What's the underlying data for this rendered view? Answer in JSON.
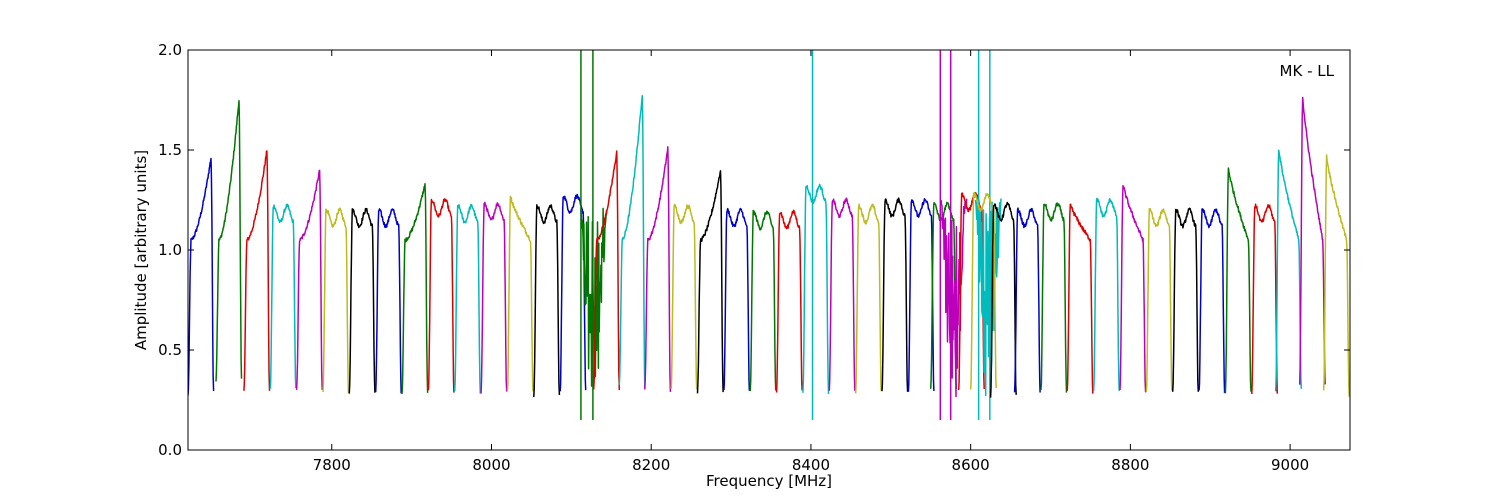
{
  "chart_data": {
    "type": "line",
    "title": "",
    "xlabel": "Frequency [MHz]",
    "ylabel": "Amplitude [arbitrary units]",
    "annotation": "MK - LL",
    "xlim": [
      7620,
      9075
    ],
    "ylim": [
      0.0,
      2.0
    ],
    "x_ticks": [
      7800,
      8000,
      8200,
      8400,
      8600,
      8800,
      9000
    ],
    "y_ticks": [
      "0.0",
      "0.5",
      "1.0",
      "1.5",
      "2.0"
    ],
    "grid": false,
    "legend": "none",
    "channel_width_mhz": 32,
    "series": [
      {
        "color": "#0000cc",
        "start": 7620,
        "low_left": 0.27,
        "low_right": 0.3,
        "max": 1.46,
        "shape": "rise"
      },
      {
        "color": "#007700",
        "start": 7655,
        "low_left": 0.35,
        "low_right": 0.35,
        "max": 1.75,
        "shape": "rise"
      },
      {
        "color": "#dd0000",
        "start": 7690,
        "low_left": 0.3,
        "low_right": 0.3,
        "max": 1.5,
        "shape": "rise"
      },
      {
        "color": "#00bbbb",
        "start": 7723,
        "low_left": 0.3,
        "low_right": 0.3,
        "max": 1.22,
        "shape": "flat"
      },
      {
        "color": "#bb00bb",
        "start": 7756,
        "low_left": 0.3,
        "low_right": 0.3,
        "max": 1.4,
        "shape": "rise"
      },
      {
        "color": "#bbbb22",
        "start": 7789,
        "low_left": 0.29,
        "low_right": 0.29,
        "max": 1.2,
        "shape": "flat"
      },
      {
        "color": "#000000",
        "start": 7822,
        "low_left": 0.29,
        "low_right": 0.29,
        "max": 1.2,
        "shape": "flat"
      },
      {
        "color": "#0000cc",
        "start": 7855,
        "low_left": 0.29,
        "low_right": 0.29,
        "max": 1.2,
        "shape": "flat"
      },
      {
        "color": "#007700",
        "start": 7888,
        "low_left": 0.29,
        "low_right": 0.29,
        "max": 1.33,
        "shape": "rise"
      },
      {
        "color": "#dd0000",
        "start": 7921,
        "low_left": 0.29,
        "low_right": 0.29,
        "max": 1.25,
        "shape": "flat"
      },
      {
        "color": "#00bbbb",
        "start": 7954,
        "low_left": 0.29,
        "low_right": 0.29,
        "max": 1.22,
        "shape": "flat"
      },
      {
        "color": "#bb00bb",
        "start": 7987,
        "low_left": 0.29,
        "low_right": 0.29,
        "max": 1.23,
        "shape": "flat"
      },
      {
        "color": "#bbbb22",
        "start": 8020,
        "low_left": 0.29,
        "low_right": 0.29,
        "max": 1.27,
        "shape": "fall"
      },
      {
        "color": "#000000",
        "start": 8053,
        "low_left": 0.27,
        "low_right": 0.27,
        "max": 1.22,
        "shape": "flat"
      },
      {
        "color": "#0000cc",
        "start": 8086,
        "low_left": 0.29,
        "low_right": 0.29,
        "max": 1.27,
        "shape": "flat"
      },
      {
        "color": "#007700",
        "start": 8112,
        "low_left": 0.6,
        "low_right": 0.3,
        "max": 1.2,
        "shape": "noisy",
        "spikes": [
          8112,
          8127
        ]
      },
      {
        "color": "#dd0000",
        "start": 8128,
        "low_left": 0.3,
        "low_right": 0.3,
        "max": 1.49,
        "shape": "rise"
      },
      {
        "color": "#00bbbb",
        "start": 8160,
        "low_left": 0.32,
        "low_right": 0.32,
        "max": 1.78,
        "shape": "rise"
      },
      {
        "color": "#bb00bb",
        "start": 8192,
        "low_left": 0.3,
        "low_right": 0.3,
        "max": 1.51,
        "shape": "rise"
      },
      {
        "color": "#bbbb22",
        "start": 8225,
        "low_left": 0.3,
        "low_right": 0.3,
        "max": 1.22,
        "shape": "flat"
      },
      {
        "color": "#000000",
        "start": 8258,
        "low_left": 0.29,
        "low_right": 0.29,
        "max": 1.4,
        "shape": "rise"
      },
      {
        "color": "#0000cc",
        "start": 8291,
        "low_left": 0.29,
        "low_right": 0.29,
        "max": 1.2,
        "shape": "flat"
      },
      {
        "color": "#007700",
        "start": 8324,
        "low_left": 0.29,
        "low_right": 0.29,
        "max": 1.19,
        "shape": "flat"
      },
      {
        "color": "#dd0000",
        "start": 8357,
        "low_left": 0.29,
        "low_right": 0.29,
        "max": 1.19,
        "shape": "flat"
      },
      {
        "color": "#00bbbb",
        "start": 8390,
        "low_left": 0.29,
        "low_right": 0.29,
        "max": 1.32,
        "shape": "flat",
        "spikes": [
          8402
        ]
      },
      {
        "color": "#bb00bb",
        "start": 8423,
        "low_left": 0.29,
        "low_right": 0.29,
        "max": 1.25,
        "shape": "flat"
      },
      {
        "color": "#bbbb22",
        "start": 8456,
        "low_left": 0.29,
        "low_right": 0.29,
        "max": 1.22,
        "shape": "flat"
      },
      {
        "color": "#000000",
        "start": 8489,
        "low_left": 0.29,
        "low_right": 0.29,
        "max": 1.25,
        "shape": "flat"
      },
      {
        "color": "#0000cc",
        "start": 8522,
        "low_left": 0.29,
        "low_right": 0.29,
        "max": 1.25,
        "shape": "flat"
      },
      {
        "color": "#007700",
        "start": 8550,
        "low_left": 0.3,
        "low_right": 0.3,
        "max": 1.23,
        "shape": "flat"
      },
      {
        "color": "#bb00bb",
        "start": 8563,
        "low_left": 0.5,
        "low_right": 0.5,
        "max": 1.25,
        "shape": "noisy",
        "spikes": [
          8562,
          8575
        ]
      },
      {
        "color": "#dd0000",
        "start": 8585,
        "low_left": 0.3,
        "low_right": 0.3,
        "max": 1.28,
        "shape": "flat"
      },
      {
        "color": "#00bbbb",
        "start": 8606,
        "low_left": 0.3,
        "low_right": 0.3,
        "max": 1.25,
        "shape": "noisy",
        "spikes": [
          8610,
          8624
        ]
      },
      {
        "color": "#bbbb22",
        "start": 8600,
        "low_left": 0.3,
        "low_right": 0.3,
        "max": 1.28,
        "shape": "flat"
      },
      {
        "color": "#000000",
        "start": 8625,
        "low_left": 0.27,
        "low_right": 0.27,
        "max": 1.23,
        "shape": "flat"
      },
      {
        "color": "#0000cc",
        "start": 8655,
        "low_left": 0.29,
        "low_right": 0.29,
        "max": 1.2,
        "shape": "flat"
      },
      {
        "color": "#007700",
        "start": 8688,
        "low_left": 0.29,
        "low_right": 0.29,
        "max": 1.23,
        "shape": "flat"
      },
      {
        "color": "#dd0000",
        "start": 8721,
        "low_left": 0.29,
        "low_right": 0.29,
        "max": 1.23,
        "shape": "fall"
      },
      {
        "color": "#00bbbb",
        "start": 8754,
        "low_left": 0.29,
        "low_right": 0.29,
        "max": 1.25,
        "shape": "flat"
      },
      {
        "color": "#bb00bb",
        "start": 8787,
        "low_left": 0.29,
        "low_right": 0.29,
        "max": 1.33,
        "shape": "fall"
      },
      {
        "color": "#bbbb22",
        "start": 8820,
        "low_left": 0.29,
        "low_right": 0.29,
        "max": 1.2,
        "shape": "flat"
      },
      {
        "color": "#000000",
        "start": 8853,
        "low_left": 0.29,
        "low_right": 0.29,
        "max": 1.2,
        "shape": "flat"
      },
      {
        "color": "#0000cc",
        "start": 8886,
        "low_left": 0.29,
        "low_right": 0.29,
        "max": 1.2,
        "shape": "flat"
      },
      {
        "color": "#007700",
        "start": 8919,
        "low_left": 0.29,
        "low_right": 0.29,
        "max": 1.41,
        "shape": "fall"
      },
      {
        "color": "#dd0000",
        "start": 8952,
        "low_left": 0.29,
        "low_right": 0.29,
        "max": 1.22,
        "shape": "flat"
      },
      {
        "color": "#00bbbb",
        "start": 8982,
        "low_left": 0.3,
        "low_right": 0.3,
        "max": 1.51,
        "shape": "fall"
      },
      {
        "color": "#bb00bb",
        "start": 9012,
        "low_left": 0.33,
        "low_right": 0.33,
        "max": 1.77,
        "shape": "fall"
      },
      {
        "color": "#bbbb22",
        "start": 9042,
        "low_left": 0.29,
        "low_right": 0.27,
        "max": 1.47,
        "shape": "fall"
      }
    ]
  }
}
